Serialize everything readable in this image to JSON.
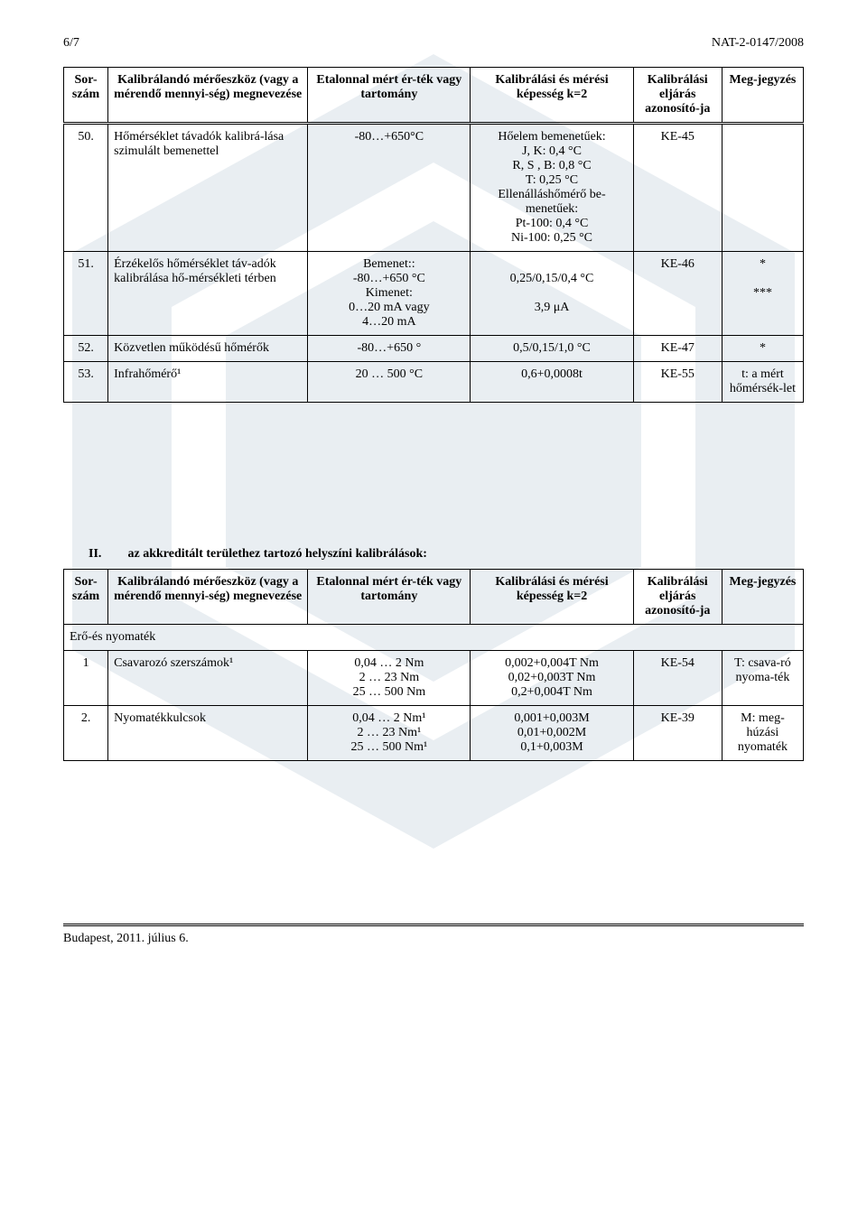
{
  "header": {
    "page": "6/7",
    "docno": "NAT-2-0147/2008"
  },
  "columns": {
    "no": "Sor-szám",
    "device": "Kalibrálandó mérőeszköz (vagy a mérendő mennyi-ség) megnevezése",
    "range": "Etalonnal mért ér-ték vagy tartomány",
    "capability": "Kalibrálási és mérési képesség k=2",
    "id": "Kalibrálási eljárás azonosító-ja",
    "note": "Meg-jegyzés"
  },
  "table1": [
    {
      "no": "50.",
      "device": "Hőmérséklet távadók kalibrá-lása szimulált bemenettel",
      "range": "-80…+650°C",
      "capability": "Hőelem bemenetűek:\nJ, K: 0,4 °C\nR, S , B: 0,8 °C\nT: 0,25 °C\nEllenálláshőmérő be-menetűek:\nPt-100: 0,4 °C\nNi-100: 0,25 °C",
      "id": "KE-45",
      "note": ""
    },
    {
      "no": "51.",
      "device": "Érzékelős hőmérséklet táv-adók kalibrálása hő-mérsékleti térben",
      "range": "Bemenet::\n-80…+650 °C\nKimenet:\n0…20 mA vagy\n4…20 mA",
      "capability": "\n0,25/0,15/0,4 °C\n\n3,9 μA",
      "id": "KE-46",
      "note": "*\n\n***"
    },
    {
      "no": "52.",
      "device": "Közvetlen működésű hőmérők",
      "range": "-80…+650 °",
      "capability": "0,5/0,15/1,0 °C",
      "id": "KE-47",
      "note": "*"
    },
    {
      "no": "53.",
      "device": "Infrahőmérő¹",
      "range": "20 … 500 °C",
      "capability": "0,6+0,0008t",
      "id": "KE-55",
      "note": "t: a mért hőmérsék-let"
    }
  ],
  "section2": {
    "roman": "II.",
    "title": "az akkreditált területhez tartozó helyszíni kalibrálások:"
  },
  "category2": "Erő-és nyomaték",
  "table2": [
    {
      "no": "1",
      "device": "Csavarozó szerszámok¹",
      "range": "0,04 … 2 Nm\n2 … 23 Nm\n25 … 500 Nm",
      "capability": "0,002+0,004T Nm\n0,02+0,003T Nm\n0,2+0,004T Nm",
      "id": "KE-54",
      "note": "T: csava-ró nyoma-ték"
    },
    {
      "no": "2.",
      "device": "Nyomatékkulcsok",
      "range": "0,04 … 2 Nm¹\n2 … 23 Nm¹\n25 … 500 Nm¹",
      "capability": "0,001+0,003M\n0,01+0,002M\n0,1+0,003M",
      "id": "KE-39",
      "note": "M: meg-húzási nyomaték"
    }
  ],
  "footer": "Budapest, 2011. július 6."
}
